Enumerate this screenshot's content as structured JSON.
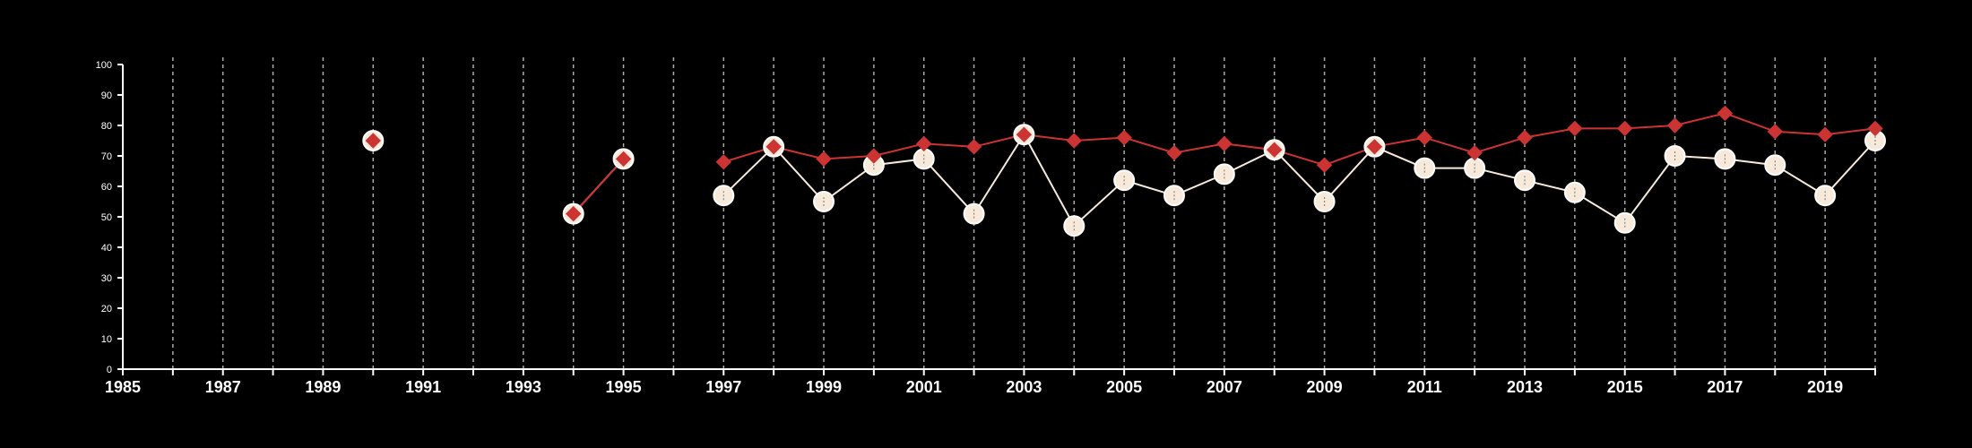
{
  "chart_data": {
    "type": "line",
    "title": "",
    "xlabel": "",
    "ylabel": "",
    "xlim": [
      1985,
      2020
    ],
    "ylim": [
      0,
      100
    ],
    "y_ticks": [
      "0",
      "10",
      "20",
      "30",
      "40",
      "50",
      "60",
      "70",
      "80",
      "90",
      "100"
    ],
    "x_ticks": [
      "1985",
      "1987",
      "1989",
      "1991",
      "1993",
      "1995",
      "1997",
      "1999",
      "2001",
      "2003",
      "2005",
      "2007",
      "2009",
      "2011",
      "2013",
      "2015",
      "2017",
      "2019"
    ],
    "grid": "vertical dashed lines at every year",
    "legend": "none",
    "colors": {
      "background": "#000000",
      "axis": "#ffffff",
      "grid": "#aaaaaa",
      "series_red": "#cc3333",
      "series_cream": "#f8eadb"
    },
    "series": [
      {
        "color": "#f8eadb",
        "marker": "circle",
        "points": [
          {
            "x": 1990,
            "y": 75
          },
          {
            "x": 1994,
            "y": 51
          },
          {
            "x": 1995,
            "y": 69
          },
          {
            "x": 1997,
            "y": 57
          },
          {
            "x": 1998,
            "y": 73
          },
          {
            "x": 1999,
            "y": 55
          },
          {
            "x": 2000,
            "y": 67
          },
          {
            "x": 2001,
            "y": 69
          },
          {
            "x": 2002,
            "y": 51
          },
          {
            "x": 2003,
            "y": 77
          },
          {
            "x": 2004,
            "y": 47
          },
          {
            "x": 2005,
            "y": 62
          },
          {
            "x": 2006,
            "y": 57
          },
          {
            "x": 2007,
            "y": 64
          },
          {
            "x": 2008,
            "y": 72
          },
          {
            "x": 2009,
            "y": 55
          },
          {
            "x": 2010,
            "y": 73
          },
          {
            "x": 2011,
            "y": 66
          },
          {
            "x": 2012,
            "y": 66
          },
          {
            "x": 2013,
            "y": 62
          },
          {
            "x": 2014,
            "y": 58
          },
          {
            "x": 2015,
            "y": 48
          },
          {
            "x": 2016,
            "y": 70
          },
          {
            "x": 2017,
            "y": 69
          },
          {
            "x": 2018,
            "y": 67
          },
          {
            "x": 2019,
            "y": 57
          },
          {
            "x": 2020,
            "y": 75
          }
        ]
      },
      {
        "color": "#cc3333",
        "marker": "diamond",
        "points": [
          {
            "x": 1990,
            "y": 75
          },
          {
            "x": 1994,
            "y": 51
          },
          {
            "x": 1995,
            "y": 69
          },
          {
            "x": 1997,
            "y": 68
          },
          {
            "x": 1998,
            "y": 73
          },
          {
            "x": 1999,
            "y": 69
          },
          {
            "x": 2000,
            "y": 70
          },
          {
            "x": 2001,
            "y": 74
          },
          {
            "x": 2002,
            "y": 73
          },
          {
            "x": 2003,
            "y": 77
          },
          {
            "x": 2004,
            "y": 75
          },
          {
            "x": 2005,
            "y": 76
          },
          {
            "x": 2006,
            "y": 71
          },
          {
            "x": 2007,
            "y": 74
          },
          {
            "x": 2008,
            "y": 72
          },
          {
            "x": 2009,
            "y": 67
          },
          {
            "x": 2010,
            "y": 73
          },
          {
            "x": 2011,
            "y": 76
          },
          {
            "x": 2012,
            "y": 71
          },
          {
            "x": 2013,
            "y": 76
          },
          {
            "x": 2014,
            "y": 79
          },
          {
            "x": 2015,
            "y": 79
          },
          {
            "x": 2016,
            "y": 80
          },
          {
            "x": 2017,
            "y": 84
          },
          {
            "x": 2018,
            "y": 78
          },
          {
            "x": 2019,
            "y": 77
          },
          {
            "x": 2020,
            "y": 79
          }
        ]
      }
    ]
  }
}
